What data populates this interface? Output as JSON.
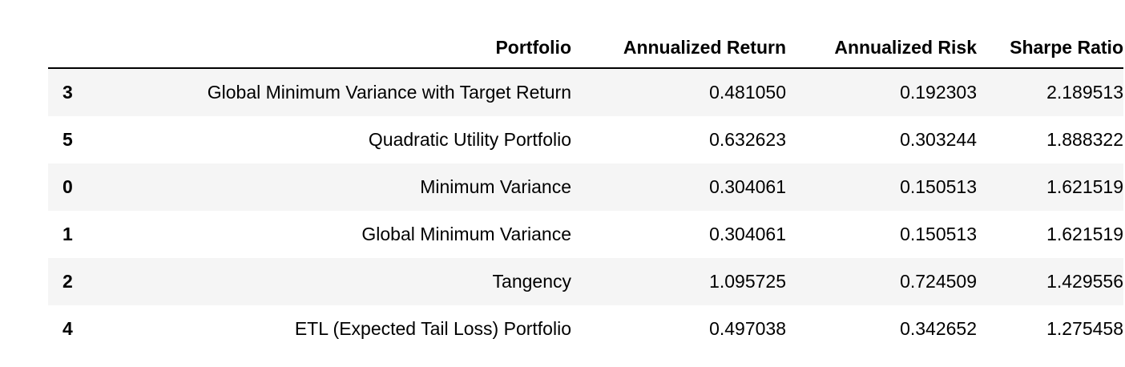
{
  "table": {
    "columns": [
      "",
      "Portfolio",
      "Annualized Return",
      "Annualized Risk",
      "Sharpe Ratio"
    ],
    "rows": [
      {
        "index": "3",
        "portfolio": "Global Minimum Variance with Target Return",
        "annualized_return": "0.481050",
        "annualized_risk": "0.192303",
        "sharpe_ratio": "2.189513"
      },
      {
        "index": "5",
        "portfolio": "Quadratic Utility Portfolio",
        "annualized_return": "0.632623",
        "annualized_risk": "0.303244",
        "sharpe_ratio": "1.888322"
      },
      {
        "index": "0",
        "portfolio": "Minimum Variance",
        "annualized_return": "0.304061",
        "annualized_risk": "0.150513",
        "sharpe_ratio": "1.621519"
      },
      {
        "index": "1",
        "portfolio": "Global Minimum Variance",
        "annualized_return": "0.304061",
        "annualized_risk": "0.150513",
        "sharpe_ratio": "1.621519"
      },
      {
        "index": "2",
        "portfolio": "Tangency",
        "annualized_return": "1.095725",
        "annualized_risk": "0.724509",
        "sharpe_ratio": "1.429556"
      },
      {
        "index": "4",
        "portfolio": "ETL (Expected Tail Loss) Portfolio",
        "annualized_return": "0.497038",
        "annualized_risk": "0.342652",
        "sharpe_ratio": "1.275458"
      }
    ]
  },
  "colors": {
    "striped_row": "#f5f5f5",
    "text": "#000000",
    "header_rule": "#000000"
  }
}
